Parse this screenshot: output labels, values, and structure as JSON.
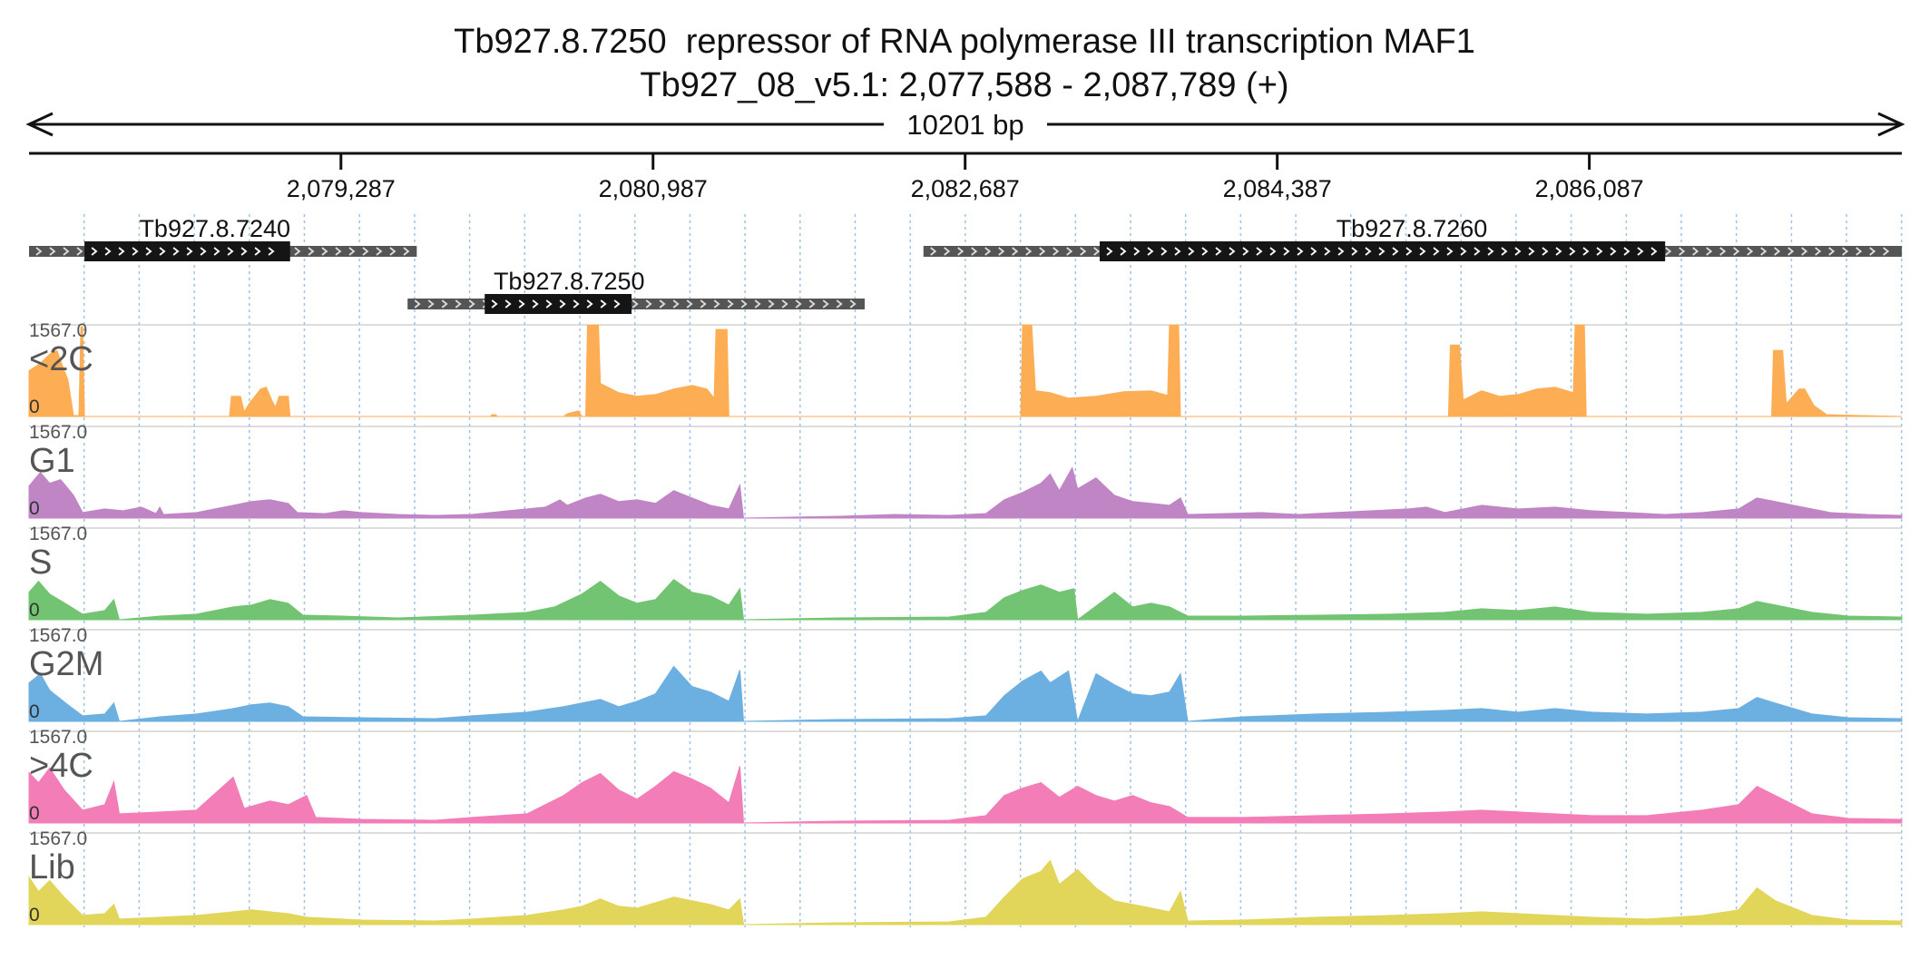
{
  "title": {
    "line1": "Tb927.8.7250  repressor of RNA polymerase III transcription MAF1",
    "line2": "Tb927_08_v5.1: 2,077,588 - 2,087,789 (+)"
  },
  "region": {
    "start": 2077588,
    "end": 2087789,
    "length_label": "10201 bp"
  },
  "ruler_ticks": [
    {
      "pos": 2079287,
      "label": "2,079,287"
    },
    {
      "pos": 2080987,
      "label": "2,080,987"
    },
    {
      "pos": 2082687,
      "label": "2,082,687"
    },
    {
      "pos": 2084387,
      "label": "2,084,387"
    },
    {
      "pos": 2086087,
      "label": "2,086,087"
    }
  ],
  "genes": [
    {
      "name": "Tb927.8.7240",
      "start": 2077588,
      "end": 2079700,
      "cds_start": 2077890,
      "cds_end": 2079010,
      "row": 0,
      "label_pos": 2078600
    },
    {
      "name": "Tb927.8.7250",
      "start": 2079650,
      "end": 2082140,
      "cds_start": 2080070,
      "cds_end": 2080870,
      "row": 1,
      "label_pos": 2080530
    },
    {
      "name": "Tb927.8.7260",
      "start": 2082460,
      "end": 2087789,
      "cds_start": 2083420,
      "cds_end": 2086500,
      "row": 0,
      "label_pos": 2085120
    }
  ],
  "tracks": [
    {
      "name": "<2C",
      "color": "#fdae54",
      "max": "1567.0",
      "min": "0"
    },
    {
      "name": "G1",
      "color": "#c085c4",
      "max": "1567.0",
      "min": "0"
    },
    {
      "name": "S",
      "color": "#72c472",
      "max": "1567.0",
      "min": "0"
    },
    {
      "name": "G2M",
      "color": "#6cafe1",
      "max": "1567.0",
      "min": "0"
    },
    {
      "name": ">4C",
      "color": "#f27db7",
      "max": "1567.0",
      "min": "0"
    },
    {
      "name": "Lib",
      "color": "#e1d55a",
      "max": "1567.0",
      "min": "0"
    }
  ],
  "coverage_2C": [
    [
      2077588,
      0.5
    ],
    [
      2077650,
      0.58
    ],
    [
      2077700,
      0.68
    ],
    [
      2077740,
      0.72
    ],
    [
      2077780,
      0.5
    ],
    [
      2077800,
      0.4
    ],
    [
      2077830,
      0.01
    ],
    [
      2077860,
      0.01
    ],
    [
      2077870,
      0.98
    ],
    [
      2077880,
      0.98
    ],
    [
      2077890,
      0.0
    ],
    [
      2078680,
      0.0
    ],
    [
      2078690,
      0.22
    ],
    [
      2078740,
      0.22
    ],
    [
      2078760,
      0.05
    ],
    [
      2078790,
      0.15
    ],
    [
      2078850,
      0.3
    ],
    [
      2078880,
      0.32
    ],
    [
      2078910,
      0.18
    ],
    [
      2078930,
      0.1
    ],
    [
      2078950,
      0.22
    ],
    [
      2079000,
      0.22
    ],
    [
      2079010,
      0.0
    ],
    [
      2080100,
      0.0
    ],
    [
      2080110,
      0.02
    ],
    [
      2080130,
      0.02
    ],
    [
      2080140,
      0.0
    ],
    [
      2080500,
      0.0
    ],
    [
      2080520,
      0.03
    ],
    [
      2080580,
      0.06
    ],
    [
      2080600,
      0.0
    ],
    [
      2080620,
      0.0
    ],
    [
      2080630,
      1.0
    ],
    [
      2080690,
      1.0
    ],
    [
      2080700,
      0.36
    ],
    [
      2080800,
      0.26
    ],
    [
      2080900,
      0.22
    ],
    [
      2081000,
      0.24
    ],
    [
      2081100,
      0.3
    ],
    [
      2081200,
      0.34
    ],
    [
      2081280,
      0.3
    ],
    [
      2081320,
      0.2
    ],
    [
      2081330,
      0.95
    ],
    [
      2081390,
      0.95
    ],
    [
      2081400,
      0.0
    ],
    [
      2082990,
      0.0
    ],
    [
      2083000,
      1.0
    ],
    [
      2083050,
      1.0
    ],
    [
      2083070,
      0.28
    ],
    [
      2083150,
      0.26
    ],
    [
      2083250,
      0.2
    ],
    [
      2083400,
      0.22
    ],
    [
      2083550,
      0.27
    ],
    [
      2083700,
      0.28
    ],
    [
      2083790,
      0.23
    ],
    [
      2083800,
      1.0
    ],
    [
      2083850,
      1.0
    ],
    [
      2083860,
      0.0
    ],
    [
      2085320,
      0.0
    ],
    [
      2085330,
      0.78
    ],
    [
      2085380,
      0.78
    ],
    [
      2085400,
      0.18
    ],
    [
      2085500,
      0.28
    ],
    [
      2085600,
      0.22
    ],
    [
      2085700,
      0.24
    ],
    [
      2085800,
      0.3
    ],
    [
      2085900,
      0.32
    ],
    [
      2086000,
      0.26
    ],
    [
      2086010,
      1.0
    ],
    [
      2086060,
      1.0
    ],
    [
      2086070,
      0.0
    ],
    [
      2087080,
      0.0
    ],
    [
      2087090,
      0.72
    ],
    [
      2087140,
      0.72
    ],
    [
      2087160,
      0.14
    ],
    [
      2087230,
      0.3
    ],
    [
      2087260,
      0.3
    ],
    [
      2087310,
      0.12
    ],
    [
      2087380,
      0.02
    ],
    [
      2087789,
      0.0
    ]
  ],
  "coverage_G1": [
    [
      2077588,
      0.35
    ],
    [
      2077650,
      0.5
    ],
    [
      2077700,
      0.38
    ],
    [
      2077760,
      0.42
    ],
    [
      2077830,
      0.25
    ],
    [
      2077880,
      0.06
    ],
    [
      2078000,
      0.1
    ],
    [
      2078100,
      0.08
    ],
    [
      2078200,
      0.12
    ],
    [
      2078280,
      0.05
    ],
    [
      2078300,
      0.12
    ],
    [
      2078320,
      0.04
    ],
    [
      2078500,
      0.06
    ],
    [
      2078600,
      0.1
    ],
    [
      2078700,
      0.14
    ],
    [
      2078800,
      0.18
    ],
    [
      2078900,
      0.2
    ],
    [
      2079000,
      0.16
    ],
    [
      2079050,
      0.06
    ],
    [
      2079200,
      0.05
    ],
    [
      2079300,
      0.08
    ],
    [
      2079400,
      0.06
    ],
    [
      2079600,
      0.04
    ],
    [
      2079800,
      0.03
    ],
    [
      2080000,
      0.04
    ],
    [
      2080200,
      0.08
    ],
    [
      2080400,
      0.12
    ],
    [
      2080480,
      0.2
    ],
    [
      2080520,
      0.14
    ],
    [
      2080620,
      0.22
    ],
    [
      2080700,
      0.26
    ],
    [
      2080800,
      0.18
    ],
    [
      2080900,
      0.2
    ],
    [
      2081000,
      0.16
    ],
    [
      2081100,
      0.3
    ],
    [
      2081200,
      0.22
    ],
    [
      2081300,
      0.14
    ],
    [
      2081400,
      0.1
    ],
    [
      2081460,
      0.36
    ],
    [
      2081480,
      0.0
    ],
    [
      2082000,
      0.02
    ],
    [
      2082300,
      0.04
    ],
    [
      2082600,
      0.03
    ],
    [
      2082800,
      0.05
    ],
    [
      2082900,
      0.2
    ],
    [
      2083000,
      0.28
    ],
    [
      2083100,
      0.38
    ],
    [
      2083150,
      0.48
    ],
    [
      2083200,
      0.3
    ],
    [
      2083270,
      0.55
    ],
    [
      2083300,
      0.32
    ],
    [
      2083400,
      0.44
    ],
    [
      2083500,
      0.25
    ],
    [
      2083600,
      0.18
    ],
    [
      2083700,
      0.16
    ],
    [
      2083800,
      0.14
    ],
    [
      2083860,
      0.22
    ],
    [
      2083900,
      0.04
    ],
    [
      2084100,
      0.05
    ],
    [
      2084300,
      0.06
    ],
    [
      2084500,
      0.04
    ],
    [
      2084700,
      0.06
    ],
    [
      2084900,
      0.08
    ],
    [
      2085100,
      0.1
    ],
    [
      2085200,
      0.12
    ],
    [
      2085300,
      0.06
    ],
    [
      2085500,
      0.14
    ],
    [
      2085700,
      0.1
    ],
    [
      2085900,
      0.12
    ],
    [
      2086100,
      0.08
    ],
    [
      2086300,
      0.06
    ],
    [
      2086500,
      0.04
    ],
    [
      2086700,
      0.06
    ],
    [
      2086900,
      0.1
    ],
    [
      2087000,
      0.22
    ],
    [
      2087100,
      0.18
    ],
    [
      2087200,
      0.14
    ],
    [
      2087400,
      0.06
    ],
    [
      2087600,
      0.04
    ],
    [
      2087789,
      0.03
    ]
  ],
  "coverage_S": [
    [
      2077588,
      0.3
    ],
    [
      2077640,
      0.42
    ],
    [
      2077700,
      0.28
    ],
    [
      2077800,
      0.16
    ],
    [
      2077880,
      0.06
    ],
    [
      2078000,
      0.1
    ],
    [
      2078050,
      0.22
    ],
    [
      2078080,
      0.0
    ],
    [
      2078300,
      0.04
    ],
    [
      2078500,
      0.06
    ],
    [
      2078700,
      0.14
    ],
    [
      2078800,
      0.16
    ],
    [
      2078900,
      0.22
    ],
    [
      2079000,
      0.18
    ],
    [
      2079080,
      0.05
    ],
    [
      2079300,
      0.04
    ],
    [
      2079600,
      0.02
    ],
    [
      2080000,
      0.05
    ],
    [
      2080300,
      0.08
    ],
    [
      2080450,
      0.14
    ],
    [
      2080600,
      0.28
    ],
    [
      2080700,
      0.42
    ],
    [
      2080800,
      0.26
    ],
    [
      2080900,
      0.18
    ],
    [
      2081000,
      0.22
    ],
    [
      2081100,
      0.44
    ],
    [
      2081200,
      0.3
    ],
    [
      2081300,
      0.26
    ],
    [
      2081400,
      0.16
    ],
    [
      2081460,
      0.34
    ],
    [
      2081480,
      0.0
    ],
    [
      2082000,
      0.02
    ],
    [
      2082600,
      0.03
    ],
    [
      2082800,
      0.08
    ],
    [
      2082900,
      0.24
    ],
    [
      2083000,
      0.32
    ],
    [
      2083100,
      0.38
    ],
    [
      2083200,
      0.3
    ],
    [
      2083280,
      0.34
    ],
    [
      2083300,
      0.0
    ],
    [
      2083500,
      0.3
    ],
    [
      2083600,
      0.14
    ],
    [
      2083700,
      0.18
    ],
    [
      2083800,
      0.14
    ],
    [
      2083900,
      0.04
    ],
    [
      2084200,
      0.04
    ],
    [
      2084600,
      0.05
    ],
    [
      2085000,
      0.06
    ],
    [
      2085300,
      0.08
    ],
    [
      2085500,
      0.12
    ],
    [
      2085700,
      0.1
    ],
    [
      2085900,
      0.14
    ],
    [
      2086100,
      0.08
    ],
    [
      2086400,
      0.06
    ],
    [
      2086700,
      0.08
    ],
    [
      2086900,
      0.12
    ],
    [
      2087000,
      0.2
    ],
    [
      2087100,
      0.16
    ],
    [
      2087300,
      0.08
    ],
    [
      2087500,
      0.04
    ],
    [
      2087789,
      0.03
    ]
  ],
  "coverage_G2M": [
    [
      2077588,
      0.42
    ],
    [
      2077650,
      0.52
    ],
    [
      2077700,
      0.34
    ],
    [
      2077800,
      0.18
    ],
    [
      2077880,
      0.06
    ],
    [
      2078000,
      0.08
    ],
    [
      2078050,
      0.2
    ],
    [
      2078080,
      0.0
    ],
    [
      2078300,
      0.05
    ],
    [
      2078500,
      0.08
    ],
    [
      2078700,
      0.14
    ],
    [
      2078800,
      0.18
    ],
    [
      2078900,
      0.2
    ],
    [
      2079000,
      0.16
    ],
    [
      2079080,
      0.05
    ],
    [
      2079400,
      0.04
    ],
    [
      2079800,
      0.03
    ],
    [
      2080000,
      0.06
    ],
    [
      2080300,
      0.1
    ],
    [
      2080500,
      0.16
    ],
    [
      2080600,
      0.2
    ],
    [
      2080700,
      0.24
    ],
    [
      2080800,
      0.16
    ],
    [
      2080900,
      0.22
    ],
    [
      2081000,
      0.3
    ],
    [
      2081100,
      0.6
    ],
    [
      2081200,
      0.38
    ],
    [
      2081300,
      0.32
    ],
    [
      2081400,
      0.22
    ],
    [
      2081460,
      0.56
    ],
    [
      2081480,
      0.0
    ],
    [
      2082000,
      0.02
    ],
    [
      2082600,
      0.03
    ],
    [
      2082800,
      0.06
    ],
    [
      2082900,
      0.28
    ],
    [
      2083000,
      0.44
    ],
    [
      2083100,
      0.55
    ],
    [
      2083150,
      0.42
    ],
    [
      2083250,
      0.55
    ],
    [
      2083300,
      0.0
    ],
    [
      2083400,
      0.52
    ],
    [
      2083500,
      0.4
    ],
    [
      2083600,
      0.3
    ],
    [
      2083700,
      0.28
    ],
    [
      2083800,
      0.32
    ],
    [
      2083860,
      0.52
    ],
    [
      2083900,
      0.0
    ],
    [
      2084200,
      0.05
    ],
    [
      2084600,
      0.08
    ],
    [
      2085000,
      0.1
    ],
    [
      2085300,
      0.12
    ],
    [
      2085500,
      0.14
    ],
    [
      2085700,
      0.1
    ],
    [
      2085900,
      0.14
    ],
    [
      2086100,
      0.1
    ],
    [
      2086400,
      0.08
    ],
    [
      2086700,
      0.1
    ],
    [
      2086900,
      0.14
    ],
    [
      2087000,
      0.26
    ],
    [
      2087100,
      0.2
    ],
    [
      2087300,
      0.08
    ],
    [
      2087500,
      0.04
    ],
    [
      2087789,
      0.03
    ]
  ],
  "coverage_4C": [
    [
      2077588,
      0.55
    ],
    [
      2077640,
      0.44
    ],
    [
      2077700,
      0.6
    ],
    [
      2077780,
      0.36
    ],
    [
      2077880,
      0.14
    ],
    [
      2078000,
      0.2
    ],
    [
      2078050,
      0.45
    ],
    [
      2078080,
      0.1
    ],
    [
      2078300,
      0.12
    ],
    [
      2078500,
      0.14
    ],
    [
      2078700,
      0.5
    ],
    [
      2078760,
      0.16
    ],
    [
      2078900,
      0.24
    ],
    [
      2079000,
      0.2
    ],
    [
      2079100,
      0.3
    ],
    [
      2079150,
      0.06
    ],
    [
      2079400,
      0.04
    ],
    [
      2079800,
      0.03
    ],
    [
      2080000,
      0.06
    ],
    [
      2080300,
      0.1
    ],
    [
      2080500,
      0.3
    ],
    [
      2080600,
      0.44
    ],
    [
      2080700,
      0.54
    ],
    [
      2080800,
      0.36
    ],
    [
      2080900,
      0.26
    ],
    [
      2081000,
      0.4
    ],
    [
      2081100,
      0.56
    ],
    [
      2081200,
      0.48
    ],
    [
      2081300,
      0.38
    ],
    [
      2081400,
      0.22
    ],
    [
      2081460,
      0.62
    ],
    [
      2081480,
      0.0
    ],
    [
      2082000,
      0.02
    ],
    [
      2082600,
      0.03
    ],
    [
      2082800,
      0.08
    ],
    [
      2082900,
      0.3
    ],
    [
      2083000,
      0.38
    ],
    [
      2083100,
      0.44
    ],
    [
      2083200,
      0.28
    ],
    [
      2083300,
      0.4
    ],
    [
      2083400,
      0.3
    ],
    [
      2083500,
      0.24
    ],
    [
      2083600,
      0.3
    ],
    [
      2083700,
      0.22
    ],
    [
      2083800,
      0.18
    ],
    [
      2083900,
      0.06
    ],
    [
      2084200,
      0.06
    ],
    [
      2084600,
      0.08
    ],
    [
      2085000,
      0.1
    ],
    [
      2085300,
      0.12
    ],
    [
      2085500,
      0.14
    ],
    [
      2085700,
      0.12
    ],
    [
      2085900,
      0.1
    ],
    [
      2086100,
      0.08
    ],
    [
      2086400,
      0.08
    ],
    [
      2086700,
      0.14
    ],
    [
      2086900,
      0.2
    ],
    [
      2087000,
      0.4
    ],
    [
      2087100,
      0.3
    ],
    [
      2087300,
      0.1
    ],
    [
      2087500,
      0.05
    ],
    [
      2087789,
      0.04
    ]
  ],
  "coverage_Lib": [
    [
      2077588,
      0.52
    ],
    [
      2077640,
      0.36
    ],
    [
      2077700,
      0.48
    ],
    [
      2077780,
      0.3
    ],
    [
      2077880,
      0.1
    ],
    [
      2078000,
      0.12
    ],
    [
      2078050,
      0.22
    ],
    [
      2078080,
      0.06
    ],
    [
      2078300,
      0.08
    ],
    [
      2078500,
      0.1
    ],
    [
      2078700,
      0.14
    ],
    [
      2078800,
      0.16
    ],
    [
      2078900,
      0.14
    ],
    [
      2079000,
      0.12
    ],
    [
      2079100,
      0.08
    ],
    [
      2079400,
      0.05
    ],
    [
      2079800,
      0.04
    ],
    [
      2080000,
      0.06
    ],
    [
      2080300,
      0.1
    ],
    [
      2080500,
      0.16
    ],
    [
      2080600,
      0.2
    ],
    [
      2080700,
      0.28
    ],
    [
      2080800,
      0.2
    ],
    [
      2080900,
      0.18
    ],
    [
      2081000,
      0.24
    ],
    [
      2081100,
      0.3
    ],
    [
      2081200,
      0.26
    ],
    [
      2081300,
      0.22
    ],
    [
      2081400,
      0.16
    ],
    [
      2081460,
      0.28
    ],
    [
      2081480,
      0.0
    ],
    [
      2082000,
      0.02
    ],
    [
      2082600,
      0.03
    ],
    [
      2082800,
      0.08
    ],
    [
      2082900,
      0.3
    ],
    [
      2083000,
      0.5
    ],
    [
      2083100,
      0.58
    ],
    [
      2083150,
      0.7
    ],
    [
      2083200,
      0.44
    ],
    [
      2083300,
      0.6
    ],
    [
      2083400,
      0.4
    ],
    [
      2083500,
      0.26
    ],
    [
      2083600,
      0.22
    ],
    [
      2083700,
      0.18
    ],
    [
      2083800,
      0.14
    ],
    [
      2083860,
      0.36
    ],
    [
      2083900,
      0.04
    ],
    [
      2084200,
      0.05
    ],
    [
      2084600,
      0.08
    ],
    [
      2085000,
      0.1
    ],
    [
      2085300,
      0.12
    ],
    [
      2085500,
      0.14
    ],
    [
      2085700,
      0.12
    ],
    [
      2085900,
      0.1
    ],
    [
      2086100,
      0.08
    ],
    [
      2086400,
      0.06
    ],
    [
      2086700,
      0.1
    ],
    [
      2086900,
      0.16
    ],
    [
      2087000,
      0.4
    ],
    [
      2087100,
      0.26
    ],
    [
      2087300,
      0.1
    ],
    [
      2087500,
      0.05
    ],
    [
      2087789,
      0.04
    ]
  ]
}
